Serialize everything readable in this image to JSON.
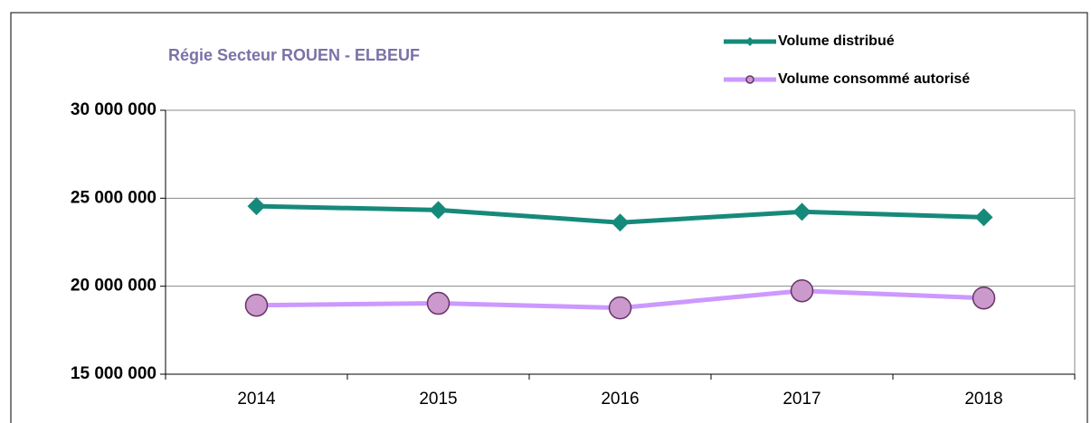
{
  "chart_data": {
    "type": "line",
    "title": "Régie Secteur ROUEN - ELBEUF",
    "categories": [
      "2014",
      "2015",
      "2016",
      "2017",
      "2018"
    ],
    "series": [
      {
        "name": "Volume distribué",
        "color": "#168a7a",
        "marker": "diamond",
        "values": [
          24550000,
          24330000,
          23620000,
          24230000,
          23920000
        ]
      },
      {
        "name": "Volume consommé autorisé",
        "color": "#cc99ff",
        "marker": "circle",
        "values": [
          18920000,
          19030000,
          18770000,
          19740000,
          19330000
        ]
      }
    ],
    "ylim": [
      15000000,
      30000000
    ],
    "yticks": [
      {
        "value": 15000000,
        "label": "15 000 000"
      },
      {
        "value": 20000000,
        "label": "20 000 000"
      },
      {
        "value": 25000000,
        "label": "25 000 000"
      },
      {
        "value": 30000000,
        "label": "30 000 000"
      }
    ],
    "grid": true,
    "legend": "top-right"
  }
}
